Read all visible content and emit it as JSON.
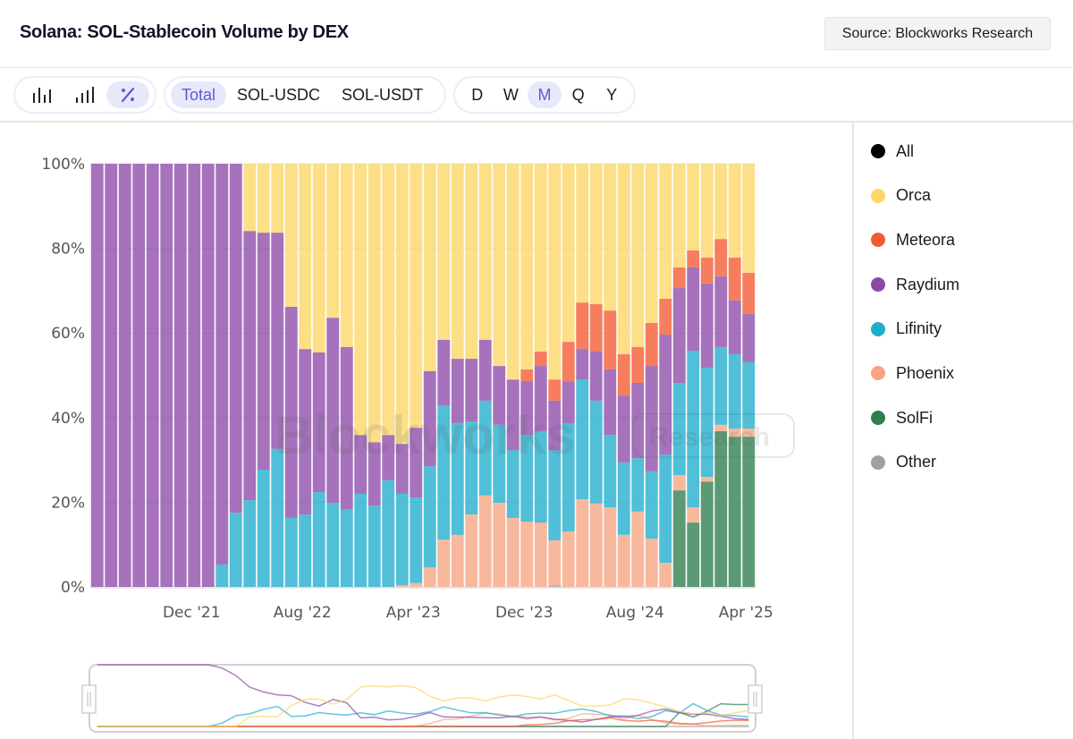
{
  "header": {
    "title": "Solana: SOL-Stablecoin Volume by DEX",
    "source_label": "Source: Blockworks Research"
  },
  "toolbar": {
    "chart_modes": [
      {
        "icon": "grouped-bar-icon",
        "active": false
      },
      {
        "icon": "ascending-bar-icon",
        "active": false
      },
      {
        "icon": "percent-icon",
        "active": true
      }
    ],
    "pairs": [
      {
        "label": "Total",
        "active": true
      },
      {
        "label": "SOL-USDC",
        "active": false
      },
      {
        "label": "SOL-USDT",
        "active": false
      }
    ],
    "intervals": [
      {
        "label": "D",
        "active": false
      },
      {
        "label": "W",
        "active": false
      },
      {
        "label": "M",
        "active": true
      },
      {
        "label": "Q",
        "active": false
      },
      {
        "label": "Y",
        "active": false
      }
    ]
  },
  "legend": [
    {
      "label": "All",
      "color": "#000000"
    },
    {
      "label": "Orca",
      "color": "#fcd666"
    },
    {
      "label": "Meteora",
      "color": "#f45a32"
    },
    {
      "label": "Raydium",
      "color": "#8c4aa8"
    },
    {
      "label": "Lifinity",
      "color": "#1fadcc"
    },
    {
      "label": "Phoenix",
      "color": "#f6a482"
    },
    {
      "label": "SolFi",
      "color": "#2e7e4f"
    },
    {
      "label": "Other",
      "color": "#a0a0a0"
    }
  ],
  "watermark": {
    "brand": "Blockworks",
    "tag": "Research"
  },
  "chart_data": {
    "type": "bar",
    "stacked": true,
    "normalized": true,
    "title": "Solana: SOL-Stablecoin Volume by DEX",
    "xlabel": "",
    "ylabel": "",
    "ylim": [
      0,
      100
    ],
    "yticks": [
      "0%",
      "20%",
      "40%",
      "60%",
      "80%",
      "100%"
    ],
    "xtick_labels": [
      {
        "index": 7,
        "label": "Dec '21"
      },
      {
        "index": 15,
        "label": "Aug '22"
      },
      {
        "index": 23,
        "label": "Apr '23"
      },
      {
        "index": 31,
        "label": "Dec '23"
      },
      {
        "index": 39,
        "label": "Aug '24"
      },
      {
        "index": 47,
        "label": "Apr '25"
      }
    ],
    "grid": true,
    "legend_position": "right",
    "categories": [
      "May '21",
      "Jun '21",
      "Jul '21",
      "Aug '21",
      "Sep '21",
      "Oct '21",
      "Nov '21",
      "Dec '21",
      "Jan '22",
      "Feb '22",
      "Mar '22",
      "Apr '22",
      "May '22",
      "Jun '22",
      "Jul '22",
      "Aug '22",
      "Sep '22",
      "Oct '22",
      "Nov '22",
      "Dec '22",
      "Jan '23",
      "Feb '23",
      "Mar '23",
      "Apr '23",
      "May '23",
      "Jun '23",
      "Jul '23",
      "Aug '23",
      "Sep '23",
      "Oct '23",
      "Nov '23",
      "Dec '23",
      "Jan '24",
      "Feb '24",
      "Mar '24",
      "Apr '24",
      "May '24",
      "Jun '24",
      "Jul '24",
      "Aug '24",
      "Sep '24",
      "Oct '24",
      "Nov '24",
      "Dec '24",
      "Jan '25",
      "Feb '25",
      "Mar '25",
      "Apr '25"
    ],
    "series": [
      {
        "name": "Other",
        "color": "#a0a0a0",
        "values": [
          0,
          0,
          0,
          0,
          0,
          0,
          0,
          0,
          0,
          0,
          0,
          0,
          0,
          0,
          0,
          0,
          0,
          0,
          0,
          0,
          0,
          0,
          0,
          0,
          0,
          0,
          0,
          0,
          0,
          0,
          0,
          0,
          0,
          0.4,
          0,
          0,
          0,
          0,
          0,
          0,
          0,
          0,
          0,
          0,
          0,
          0,
          0,
          0
        ]
      },
      {
        "name": "SolFi",
        "color": "#2e7e4f",
        "values": [
          0,
          0,
          0,
          0,
          0,
          0,
          0,
          0,
          0,
          0,
          0,
          0,
          0,
          0,
          0,
          0,
          0,
          0,
          0,
          0,
          0,
          0,
          0,
          0,
          0,
          0,
          0,
          0,
          0,
          0,
          0,
          0,
          0,
          0,
          0,
          0,
          0,
          0,
          0,
          0,
          0,
          0,
          22.8,
          15.2,
          24.9,
          36.8,
          35.5,
          35.5
        ]
      },
      {
        "name": "Phoenix",
        "color": "#f6a482",
        "values": [
          0,
          0,
          0,
          0,
          0,
          0,
          0,
          0,
          0,
          0,
          0,
          0,
          0,
          0,
          0,
          0,
          0,
          0,
          0,
          0,
          0,
          0,
          0.4,
          0.9,
          4.6,
          11.2,
          12.3,
          17.1,
          21.6,
          19.9,
          16.3,
          15.4,
          15.2,
          10.6,
          13.1,
          20.7,
          19.7,
          18.8,
          12.3,
          17.8,
          11.4,
          5.7,
          3.6,
          3.6,
          1.1,
          1.5,
          1.9,
          1.9
        ]
      },
      {
        "name": "Lifinity",
        "color": "#1fadcc",
        "values": [
          0,
          0,
          0,
          0,
          0,
          0,
          0,
          0,
          0,
          5.3,
          17.5,
          20.5,
          27.7,
          32.6,
          16.3,
          17.1,
          22.4,
          19.9,
          18.4,
          22.0,
          19.2,
          25.2,
          21.6,
          20.2,
          23.9,
          31.7,
          26.4,
          22.0,
          22.4,
          18.4,
          16.0,
          20.5,
          21.6,
          21.3,
          25.6,
          28.3,
          24.3,
          17.1,
          17.1,
          12.6,
          15.9,
          25.6,
          21.8,
          37.0,
          25.8,
          18.4,
          17.6,
          15.7
        ]
      },
      {
        "name": "Raydium",
        "color": "#8c4aa8",
        "values": [
          100,
          100,
          100,
          100,
          100,
          100,
          100,
          100,
          100,
          94.7,
          82.5,
          63.6,
          56.0,
          51.1,
          49.9,
          39.1,
          33.0,
          43.7,
          38.3,
          13.9,
          15.0,
          10.7,
          11.8,
          16.5,
          22.5,
          15.5,
          15.2,
          14.8,
          14.4,
          13.9,
          16.7,
          12.7,
          15.4,
          11.7,
          9.9,
          7.2,
          11.6,
          15.5,
          15.8,
          17.8,
          24.9,
          28.3,
          22.4,
          19.7,
          19.9,
          16.7,
          12.7,
          11.4
        ]
      },
      {
        "name": "Meteora",
        "color": "#f45a32",
        "values": [
          0,
          0,
          0,
          0,
          0,
          0,
          0,
          0,
          0,
          0,
          0,
          0,
          0,
          0,
          0,
          0,
          0,
          0,
          0,
          0,
          0,
          0,
          0,
          0,
          0,
          0,
          0,
          0,
          0,
          0,
          0,
          2.8,
          3.4,
          5.0,
          9.3,
          11.0,
          11.2,
          13.9,
          9.8,
          8.5,
          10.2,
          8.5,
          4.9,
          4.0,
          6.1,
          8.8,
          10.1,
          9.7
        ]
      },
      {
        "name": "Orca",
        "color": "#fcd666",
        "values": [
          0,
          0,
          0,
          0,
          0,
          0,
          0,
          0,
          0,
          0,
          0,
          15.9,
          16.3,
          16.3,
          33.8,
          43.8,
          44.6,
          36.4,
          43.3,
          64.1,
          65.8,
          64.1,
          66.2,
          62.4,
          49.0,
          41.6,
          46.1,
          46.1,
          41.6,
          47.8,
          51.0,
          48.6,
          44.4,
          51.0,
          42.1,
          32.8,
          33.2,
          34.7,
          45.0,
          43.3,
          37.6,
          31.9,
          24.5,
          20.5,
          22.2,
          17.8,
          22.2,
          25.8
        ]
      }
    ]
  }
}
